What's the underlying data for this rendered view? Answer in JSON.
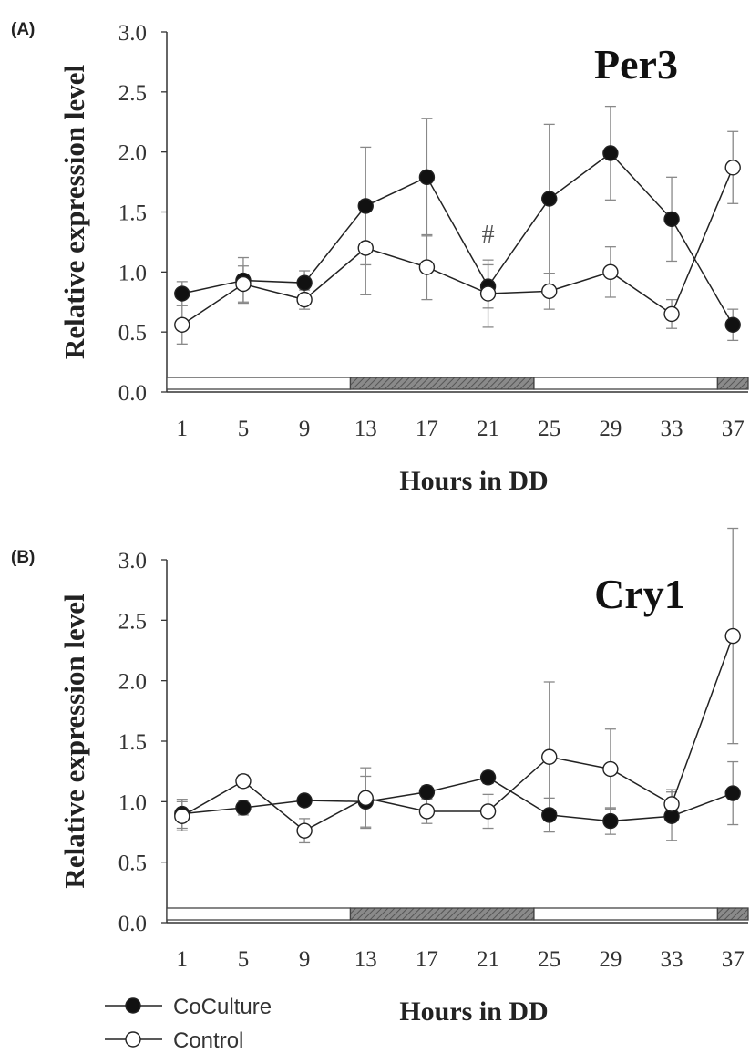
{
  "chart_data": [
    {
      "type": "line",
      "panel_label": "(A)",
      "title": "Per3",
      "xlabel": "Hours in DD",
      "ylabel": "Relative expression level",
      "ylim": [
        0,
        3.0
      ],
      "yticks": [
        "0.0",
        "0.5",
        "1.0",
        "1.5",
        "2.0",
        "2.5",
        "3.0"
      ],
      "x": [
        1,
        5,
        9,
        13,
        17,
        21,
        25,
        29,
        33,
        37
      ],
      "xticks": [
        "1",
        "5",
        "9",
        "13",
        "17",
        "21",
        "25",
        "29",
        "33",
        "37"
      ],
      "grid": false,
      "light_dark_bar": [
        {
          "from": 0,
          "to": 12,
          "phase": "light"
        },
        {
          "from": 12,
          "to": 24,
          "phase": "dark"
        },
        {
          "from": 24,
          "to": 36,
          "phase": "light"
        },
        {
          "from": 36,
          "to": 38,
          "phase": "dark"
        }
      ],
      "annotations": [
        {
          "text": "#",
          "x": 21,
          "y": 1.3
        }
      ],
      "series": [
        {
          "name": "CoCulture",
          "marker": "filled",
          "values": [
            0.82,
            0.93,
            0.91,
            1.55,
            1.79,
            0.88,
            1.61,
            1.99,
            1.44,
            0.56
          ],
          "errors": [
            0.1,
            0.19,
            0.1,
            0.49,
            0.49,
            0.18,
            0.62,
            0.39,
            0.35,
            0.13
          ]
        },
        {
          "name": "Control",
          "marker": "open",
          "values": [
            0.56,
            0.9,
            0.77,
            1.2,
            1.04,
            0.82,
            0.84,
            1.0,
            0.65,
            1.87
          ],
          "errors": [
            0.16,
            0.15,
            0.08,
            0.39,
            0.27,
            0.28,
            0.15,
            0.21,
            0.12,
            0.3
          ]
        }
      ]
    },
    {
      "type": "line",
      "panel_label": "(B)",
      "title": "Cry1",
      "xlabel": "Hours in DD",
      "ylabel": "Relative expression level",
      "ylim": [
        0,
        3.0
      ],
      "yticks": [
        "0.0",
        "0.5",
        "1.0",
        "1.5",
        "2.0",
        "2.5",
        "3.0"
      ],
      "x": [
        1,
        5,
        9,
        13,
        17,
        21,
        25,
        29,
        33,
        37
      ],
      "xticks": [
        "1",
        "5",
        "9",
        "13",
        "17",
        "21",
        "25",
        "29",
        "33",
        "37"
      ],
      "grid": false,
      "light_dark_bar": [
        {
          "from": 0,
          "to": 12,
          "phase": "light"
        },
        {
          "from": 12,
          "to": 24,
          "phase": "dark"
        },
        {
          "from": 24,
          "to": 36,
          "phase": "light"
        },
        {
          "from": 36,
          "to": 38,
          "phase": "dark"
        }
      ],
      "annotations": [],
      "series": [
        {
          "name": "CoCulture",
          "marker": "filled",
          "values": [
            0.9,
            0.95,
            1.01,
            1.0,
            1.08,
            1.2,
            0.89,
            0.84,
            0.88,
            1.07
          ],
          "errors": [
            0.12,
            0.06,
            0.04,
            0.21,
            0.05,
            0.05,
            0.14,
            0.11,
            0.2,
            0.26
          ]
        },
        {
          "name": "Control",
          "marker": "open",
          "values": [
            0.88,
            1.17,
            0.76,
            1.03,
            0.92,
            0.92,
            1.37,
            1.27,
            0.98,
            2.37
          ],
          "errors": [
            0.12,
            0.05,
            0.1,
            0.25,
            0.1,
            0.14,
            0.62,
            0.33,
            0.12,
            0.89
          ]
        }
      ]
    }
  ],
  "legend": {
    "position": "bottom-left",
    "items": [
      {
        "label": "CoCulture",
        "marker": "filled"
      },
      {
        "label": "Control",
        "marker": "open"
      }
    ]
  }
}
